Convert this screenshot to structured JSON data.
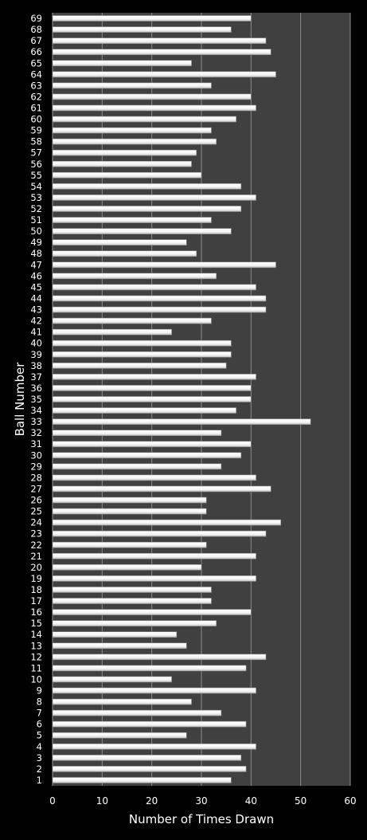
{
  "chart_data": {
    "type": "bar",
    "orientation": "horizontal",
    "title": "",
    "xlabel": "Number of Times Drawn",
    "ylabel": "Ball Number",
    "xlim": [
      0,
      60
    ],
    "x_ticks": [
      0,
      10,
      20,
      30,
      40,
      50,
      60
    ],
    "grid": "vertical",
    "legend": "none",
    "colors": {
      "page_background": "#000000",
      "plot_background": "#404040",
      "bar_fill": "#f4f4f4",
      "bar_edge": "#8a8a8a",
      "gridline": "#8c8c8c",
      "text": "#ffffff"
    },
    "categories": [
      "1",
      "2",
      "3",
      "4",
      "5",
      "6",
      "7",
      "8",
      "9",
      "10",
      "11",
      "12",
      "13",
      "14",
      "15",
      "16",
      "17",
      "18",
      "19",
      "20",
      "21",
      "22",
      "23",
      "24",
      "25",
      "26",
      "27",
      "28",
      "29",
      "30",
      "31",
      "32",
      "33",
      "34",
      "35",
      "36",
      "37",
      "38",
      "39",
      "40",
      "41",
      "42",
      "43",
      "44",
      "45",
      "46",
      "47",
      "48",
      "49",
      "50",
      "51",
      "52",
      "53",
      "54",
      "55",
      "56",
      "57",
      "58",
      "59",
      "60",
      "61",
      "62",
      "63",
      "64",
      "65",
      "66",
      "67",
      "68",
      "69"
    ],
    "values": [
      36,
      39,
      38,
      41,
      27,
      39,
      34,
      28,
      41,
      24,
      39,
      43,
      27,
      25,
      33,
      40,
      32,
      32,
      41,
      30,
      41,
      31,
      43,
      46,
      31,
      31,
      44,
      41,
      34,
      38,
      40,
      34,
      52,
      37,
      40,
      40,
      41,
      35,
      36,
      36,
      24,
      32,
      43,
      43,
      41,
      33,
      45,
      29,
      27,
      36,
      32,
      38,
      41,
      38,
      30,
      28,
      29,
      33,
      32,
      37,
      41,
      40,
      32,
      45,
      28,
      44,
      43,
      36,
      40
    ]
  }
}
